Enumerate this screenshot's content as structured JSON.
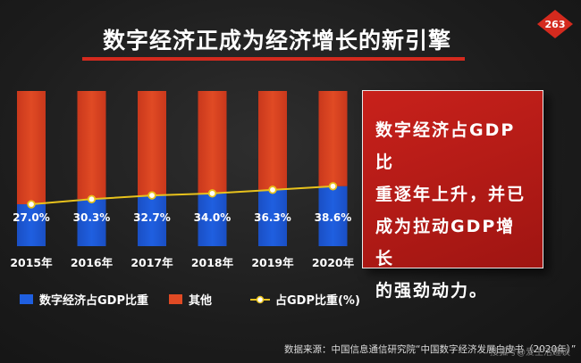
{
  "title": "数字经济正成为经济增长的新引擎",
  "logo_text": "263",
  "callout_lines": [
    "数字经济占GDP比",
    "重逐年上升，并已",
    "成为拉动GDP增长",
    "的强劲动力。"
  ],
  "source": "数据来源：中国信息通信研究院“中国数字经济发展白皮书（2020年）”",
  "watermark": "搜狐号@爱生活趣谈",
  "colors": {
    "digital": "#1f5fe0",
    "other": "#e04a24",
    "ratio_line": "#e8c21c",
    "callout": "#b81b16"
  },
  "chart_data": {
    "type": "bar",
    "stacked": true,
    "categories": [
      "2015年",
      "2016年",
      "2017年",
      "2018年",
      "2019年",
      "2020年"
    ],
    "ylim": [
      0,
      100
    ],
    "series": [
      {
        "name": "数字经济占GDP比重",
        "values": [
          27.0,
          30.3,
          32.7,
          34.0,
          36.3,
          38.6
        ]
      },
      {
        "name": "其他",
        "values": [
          73.0,
          69.7,
          67.3,
          66.0,
          63.7,
          61.4
        ]
      }
    ],
    "line_series": {
      "name": "占GDP比重(%)",
      "values": [
        27.0,
        30.3,
        32.7,
        34.0,
        36.3,
        38.6
      ]
    },
    "data_labels": [
      "27.0%",
      "30.3%",
      "32.7%",
      "34.0%",
      "36.3%",
      "38.6%"
    ],
    "legend": "bottom"
  }
}
